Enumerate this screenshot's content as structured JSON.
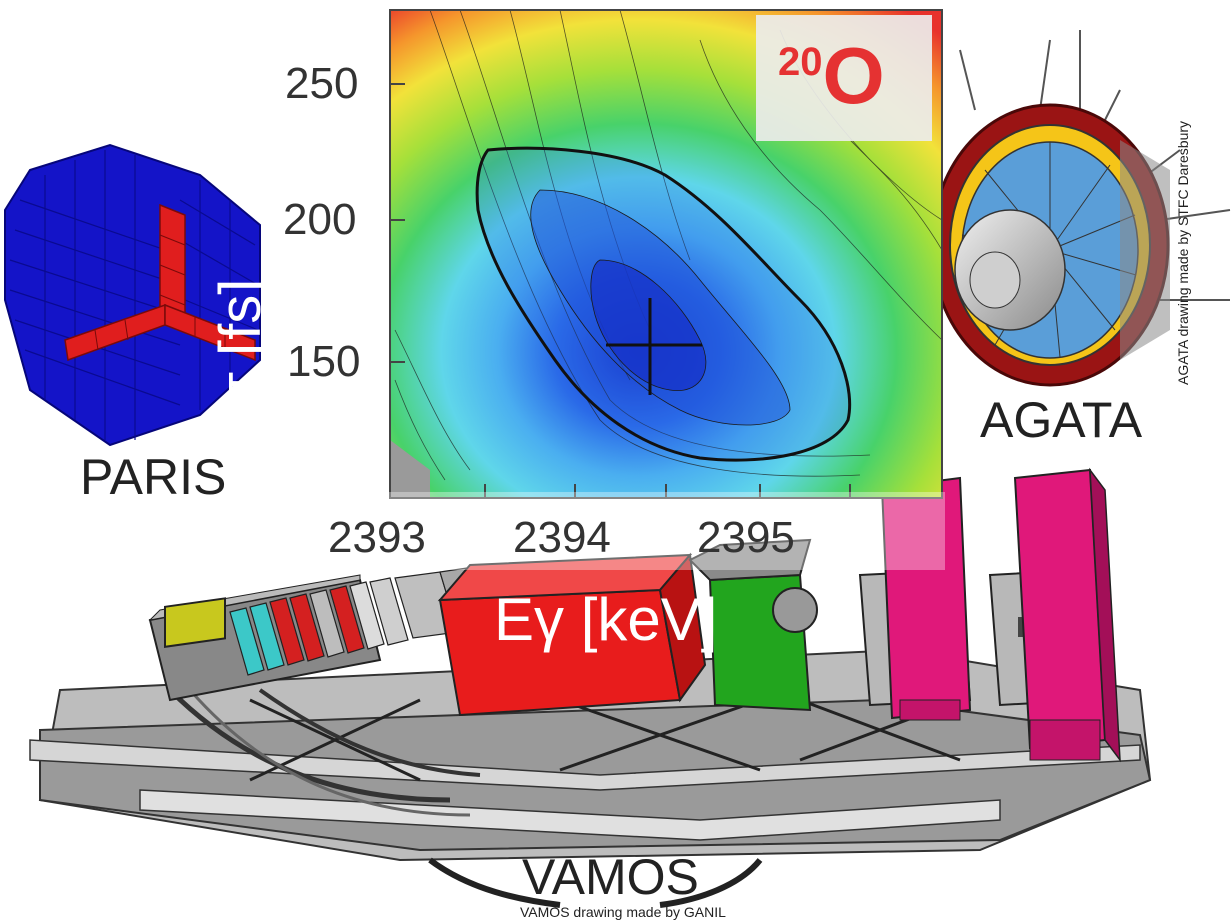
{
  "labels": {
    "paris": "PARIS",
    "agata": "AGATA",
    "vamos": "VAMOS",
    "vamos_credit": "VAMOS drawing made by GANIL",
    "agata_credit": "AGATA drawing made by STFC Daresbury"
  },
  "isotope": {
    "mass": "20",
    "symbol": "O",
    "color": "#e53232"
  },
  "plot": {
    "x_label": "Eγ [keV]",
    "y_label": "τ [fs]",
    "x_ticks": [
      "2393",
      "2394",
      "2395"
    ],
    "y_ticks": [
      "250",
      "200",
      "150"
    ],
    "best_fit_marker": "cross"
  },
  "chart_data": {
    "type": "heatmap",
    "xlabel": "Eγ [keV]",
    "ylabel": "τ [fs]",
    "x_ticks": [
      2393,
      2394,
      2395
    ],
    "y_ticks": [
      150,
      200,
      250
    ],
    "best_fit": {
      "x": 2394.4,
      "y": 155
    },
    "colormap": [
      "#1a3fd8",
      "#3a8ff0",
      "#5fd6ea",
      "#48d26a",
      "#9ae03a",
      "#f2e23a",
      "#f5952c",
      "#e8322c"
    ]
  },
  "colors": {
    "paris_blue": "#1414c8",
    "paris_red": "#e01e1e",
    "agata_red": "#9a1414",
    "agata_yellow": "#f5c518",
    "vamos_magenta": "#e0187a",
    "vamos_red": "#e81c1c",
    "vamos_green": "#22a51e",
    "frame_grey": "#8a8a8a"
  },
  "icons": [
    "paris-detector-icon",
    "agata-detector-icon",
    "vamos-spectrometer-icon"
  ]
}
